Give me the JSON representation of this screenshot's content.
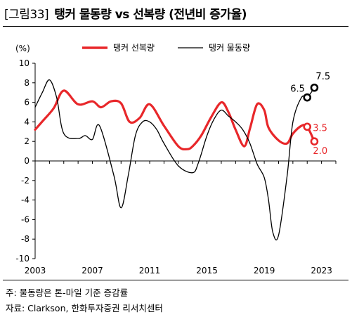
{
  "figure": {
    "tag": "[그림33]",
    "title": "탱커 물동량 vs 선복량 (전년비 증가율)"
  },
  "notes": {
    "note": "주: 물동량은 톤-마일 기준 증감률",
    "source": "자료: Clarkson, 한화투자증권 리서치센터"
  },
  "chart_data": {
    "type": "line",
    "ylabel": "(%)",
    "ylim": [
      -10,
      10
    ],
    "yticks": [
      10,
      8,
      6,
      4,
      2,
      0,
      -2,
      -4,
      -6,
      -8,
      -10
    ],
    "xlim": [
      2003,
      2024
    ],
    "xticks": [
      2003,
      2007,
      2011,
      2015,
      2019,
      2023
    ],
    "grid": false,
    "legend": "top",
    "colors": {
      "supply": "#e8272a",
      "demand": "#000000",
      "axis": "#000000"
    },
    "series": [
      {
        "name": "탱커 선복량",
        "key": "supply",
        "x": [
          2003,
          2003.6,
          2004.3,
          2005,
          2006,
          2007,
          2007.6,
          2008.3,
          2009,
          2009.6,
          2010.3,
          2011,
          2012,
          2013,
          2013.6,
          2014,
          2014.6,
          2015.3,
          2016,
          2016.5,
          2017,
          2017.6,
          2018,
          2018.5,
          2019,
          2019.3,
          2020,
          2020.6,
          2021,
          2021.6,
          2022,
          2022.5
        ],
        "y": [
          3.2,
          4.2,
          5.4,
          7.2,
          5.8,
          6.1,
          5.5,
          6.1,
          5.9,
          4.0,
          4.4,
          5.8,
          3.6,
          1.5,
          1.2,
          1.5,
          2.6,
          4.5,
          6.0,
          5.0,
          3.2,
          1.5,
          3.3,
          5.8,
          5.2,
          3.4,
          2.1,
          1.8,
          2.8,
          3.6,
          3.5,
          2.0
        ]
      },
      {
        "name": "탱커 물동량",
        "key": "demand",
        "x": [
          2003,
          2003.5,
          2004,
          2004.5,
          2005,
          2006,
          2006.5,
          2007,
          2007.5,
          2008.5,
          2009,
          2009.5,
          2010,
          2010.5,
          2011,
          2011.5,
          2012,
          2013,
          2014,
          2014.4,
          2015,
          2015.5,
          2016,
          2016.5,
          2017,
          2017.5,
          2018,
          2018.5,
          2019,
          2019.3,
          2019.6,
          2020,
          2020.6,
          2021,
          2021.6,
          2022,
          2022.5
        ],
        "y": [
          5.5,
          7.0,
          8.3,
          6.5,
          2.8,
          2.3,
          2.6,
          2.2,
          3.6,
          -1.5,
          -4.8,
          -1.5,
          2.6,
          4.0,
          4.0,
          3.2,
          1.8,
          -0.5,
          -1.2,
          -0.2,
          2.6,
          4.3,
          5.2,
          4.6,
          4.0,
          3.2,
          1.8,
          -0.3,
          -1.7,
          -4.0,
          -7.3,
          -7.6,
          -1.5,
          4.0,
          6.5,
          6.5,
          7.5
        ]
      }
    ],
    "annotations": [
      {
        "series": "demand",
        "x": 2022,
        "y": 6.5,
        "label": "6.5"
      },
      {
        "series": "demand",
        "x": 2022.5,
        "y": 7.5,
        "label": "7.5"
      },
      {
        "series": "supply",
        "x": 2022,
        "y": 3.5,
        "label": "3.5"
      },
      {
        "series": "supply",
        "x": 2022.5,
        "y": 2.0,
        "label": "2.0"
      }
    ]
  }
}
